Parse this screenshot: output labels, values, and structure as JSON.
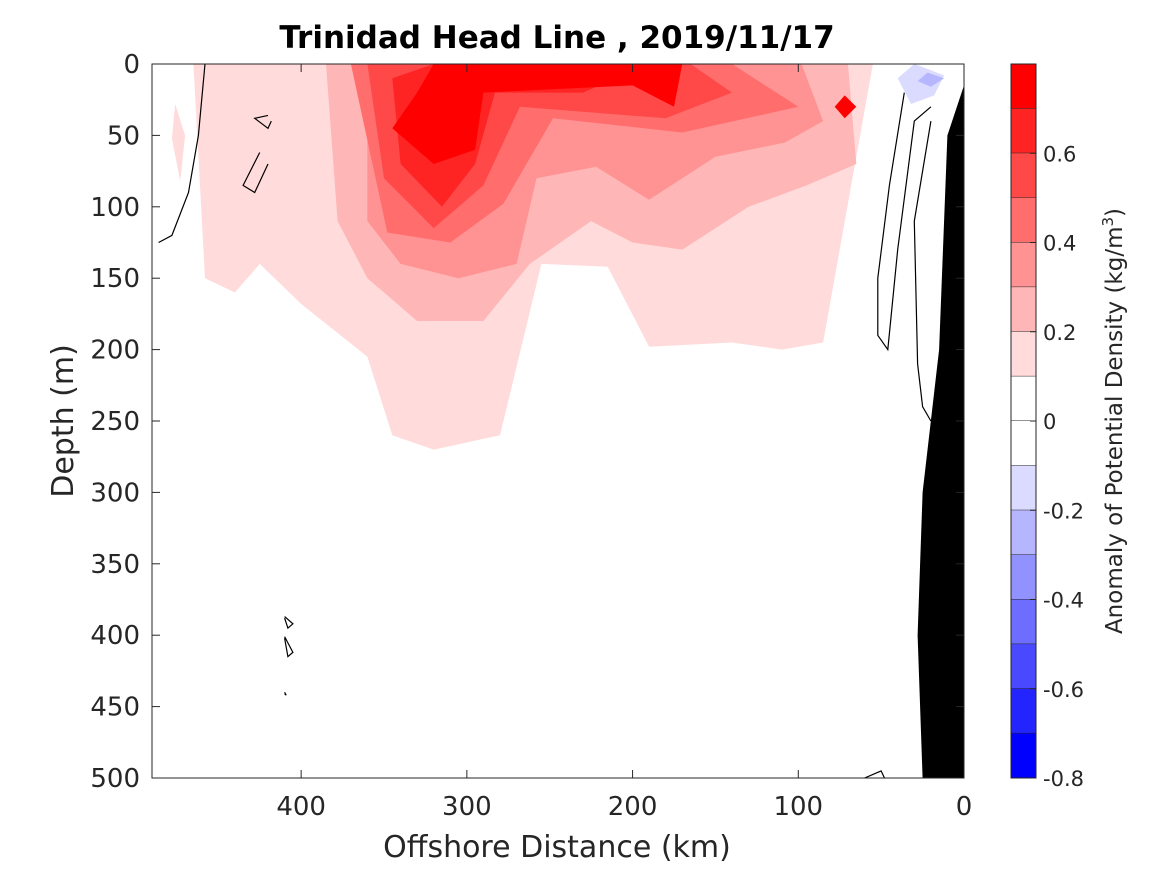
{
  "chart_data": {
    "type": "heatmap",
    "title": "Trinidad Head Line , 2019/11/17",
    "xlabel": "Offshore Distance (km)",
    "ylabel": "Depth (m)",
    "xlim": [
      490,
      0
    ],
    "ylim": [
      0,
      500
    ],
    "x_ticks": [
      400,
      300,
      200,
      100,
      0
    ],
    "y_ticks": [
      0,
      50,
      100,
      150,
      200,
      250,
      300,
      350,
      400,
      450,
      500
    ],
    "x_tick_labels": [
      "400",
      "300",
      "200",
      "100",
      "0"
    ],
    "y_tick_labels": [
      "0",
      "50",
      "100",
      "150",
      "200",
      "250",
      "300",
      "350",
      "400",
      "450",
      "500"
    ],
    "colorbar": {
      "label": "Anomaly of Potential Density (kg/m",
      "label_superscript": "3",
      "label_suffix": ")",
      "range": [
        -0.8,
        0.8
      ],
      "ticks": [
        0.6,
        0.4,
        0.2,
        0,
        -0.2,
        -0.4,
        -0.6,
        -0.8
      ],
      "tick_labels": [
        "0.6",
        "0.4",
        "0.2",
        "0",
        "-0.2",
        "-0.4",
        "-0.6",
        "-0.8"
      ],
      "levels": [
        {
          "lo": 0.7,
          "hi": 0.8,
          "color": "#ff0000"
        },
        {
          "lo": 0.6,
          "hi": 0.7,
          "color": "#ff2424"
        },
        {
          "lo": 0.5,
          "hi": 0.6,
          "color": "#ff4949"
        },
        {
          "lo": 0.4,
          "hi": 0.5,
          "color": "#ff6d6d"
        },
        {
          "lo": 0.3,
          "hi": 0.4,
          "color": "#ff9292"
        },
        {
          "lo": 0.2,
          "hi": 0.3,
          "color": "#ffb6b6"
        },
        {
          "lo": 0.1,
          "hi": 0.2,
          "color": "#ffdbdb"
        },
        {
          "lo": 0.0,
          "hi": 0.1,
          "color": "#ffffff"
        },
        {
          "lo": -0.1,
          "hi": 0.0,
          "color": "#ffffff"
        },
        {
          "lo": -0.2,
          "hi": -0.1,
          "color": "#dbdbff"
        },
        {
          "lo": -0.3,
          "hi": -0.2,
          "color": "#b6b6ff"
        },
        {
          "lo": -0.4,
          "hi": -0.3,
          "color": "#9292ff"
        },
        {
          "lo": -0.5,
          "hi": -0.4,
          "color": "#6d6dff"
        },
        {
          "lo": -0.6,
          "hi": -0.5,
          "color": "#4949ff"
        },
        {
          "lo": -0.7,
          "hi": -0.6,
          "color": "#2424ff"
        },
        {
          "lo": -0.8,
          "hi": -0.7,
          "color": "#0000ff"
        }
      ]
    },
    "regions": [
      {
        "level": 0.1,
        "points": [
          [
            465,
            0
          ],
          [
            458,
            150
          ],
          [
            440,
            160
          ],
          [
            425,
            140
          ],
          [
            400,
            168
          ],
          [
            360,
            205
          ],
          [
            345,
            260
          ],
          [
            320,
            270
          ],
          [
            280,
            260
          ],
          [
            255,
            140
          ],
          [
            215,
            142
          ],
          [
            190,
            198
          ],
          [
            140,
            195
          ],
          [
            110,
            200
          ],
          [
            85,
            195
          ],
          [
            55,
            0
          ]
        ]
      },
      {
        "level": 0.1,
        "points": [
          [
            476,
            28
          ],
          [
            470,
            50
          ],
          [
            473,
            82
          ],
          [
            478,
            52
          ]
        ]
      },
      {
        "level": 0.2,
        "points": [
          [
            385,
            0
          ],
          [
            378,
            110
          ],
          [
            360,
            150
          ],
          [
            330,
            180
          ],
          [
            290,
            180
          ],
          [
            262,
            140
          ],
          [
            225,
            110
          ],
          [
            200,
            125
          ],
          [
            170,
            130
          ],
          [
            130,
            100
          ],
          [
            95,
            85
          ],
          [
            65,
            70
          ],
          [
            70,
            0
          ]
        ]
      },
      {
        "level": 0.3,
        "points": [
          [
            360,
            0
          ],
          [
            360,
            110
          ],
          [
            340,
            140
          ],
          [
            305,
            150
          ],
          [
            270,
            140
          ],
          [
            258,
            80
          ],
          [
            222,
            72
          ],
          [
            190,
            95
          ],
          [
            150,
            65
          ],
          [
            108,
            55
          ],
          [
            85,
            40
          ],
          [
            98,
            0
          ]
        ]
      },
      {
        "level": 0.4,
        "points": [
          [
            370,
            0
          ],
          [
            348,
            118
          ],
          [
            310,
            125
          ],
          [
            278,
            98
          ],
          [
            248,
            38
          ],
          [
            170,
            48
          ],
          [
            100,
            30
          ],
          [
            140,
            0
          ]
        ]
      },
      {
        "level": 0.5,
        "points": [
          [
            360,
            0
          ],
          [
            350,
            80
          ],
          [
            320,
            115
          ],
          [
            290,
            85
          ],
          [
            268,
            30
          ],
          [
            180,
            38
          ],
          [
            140,
            20
          ],
          [
            165,
            0
          ]
        ]
      },
      {
        "level": 0.6,
        "points": [
          [
            345,
            10
          ],
          [
            340,
            70
          ],
          [
            315,
            100
          ],
          [
            295,
            70
          ],
          [
            283,
            20
          ],
          [
            230,
            20
          ],
          [
            200,
            5
          ],
          [
            175,
            0
          ],
          [
            320,
            0
          ]
        ]
      },
      {
        "level": 0.7,
        "points": [
          [
            330,
            20
          ],
          [
            345,
            45
          ],
          [
            320,
            70
          ],
          [
            295,
            60
          ],
          [
            290,
            20
          ],
          [
            200,
            15
          ],
          [
            175,
            30
          ],
          [
            170,
            0
          ],
          [
            320,
            0
          ]
        ]
      },
      {
        "level": 0.7,
        "points": [
          [
            72,
            22
          ],
          [
            65,
            30
          ],
          [
            72,
            38
          ],
          [
            78,
            30
          ]
        ]
      },
      {
        "level": -0.1,
        "points": [
          [
            40,
            10
          ],
          [
            32,
            28
          ],
          [
            18,
            22
          ],
          [
            12,
            8
          ],
          [
            30,
            0
          ]
        ]
      },
      {
        "level": -0.2,
        "points": [
          [
            28,
            12
          ],
          [
            20,
            16
          ],
          [
            12,
            10
          ],
          [
            22,
            6
          ]
        ]
      }
    ],
    "contour_zero": [
      [
        [
          458,
          0
        ],
        [
          462,
          50
        ],
        [
          468,
          90
        ],
        [
          478,
          120
        ],
        [
          486,
          125
        ]
      ],
      [
        [
          36,
          20
        ],
        [
          45,
          85
        ],
        [
          52,
          150
        ],
        [
          52,
          190
        ],
        [
          46,
          200
        ],
        [
          40,
          130
        ],
        [
          30,
          40
        ],
        [
          20,
          30
        ]
      ],
      [
        [
          20,
          40
        ],
        [
          30,
          110
        ],
        [
          28,
          210
        ],
        [
          25,
          240
        ],
        [
          20,
          250
        ]
      ],
      [
        [
          420,
          70
        ],
        [
          428,
          90
        ],
        [
          435,
          85
        ],
        [
          425,
          62
        ]
      ],
      [
        [
          418,
          40
        ],
        [
          420,
          45
        ],
        [
          428,
          38
        ],
        [
          420,
          36
        ]
      ],
      [
        [
          410,
          388
        ],
        [
          408,
          395
        ],
        [
          405,
          392
        ],
        [
          410,
          387
        ]
      ],
      [
        [
          410,
          402
        ],
        [
          408,
          415
        ],
        [
          405,
          412
        ],
        [
          410,
          401
        ]
      ],
      [
        [
          410,
          440
        ],
        [
          409,
          442
        ],
        [
          410,
          441
        ]
      ],
      [
        [
          60,
          500
        ],
        [
          50,
          495
        ],
        [
          48,
          500
        ]
      ]
    ],
    "bathymetry": [
      [
        25,
        500
      ],
      [
        0,
        500
      ],
      [
        0,
        15
      ],
      [
        10,
        50
      ],
      [
        15,
        200
      ],
      [
        25,
        300
      ],
      [
        28,
        400
      ]
    ]
  }
}
